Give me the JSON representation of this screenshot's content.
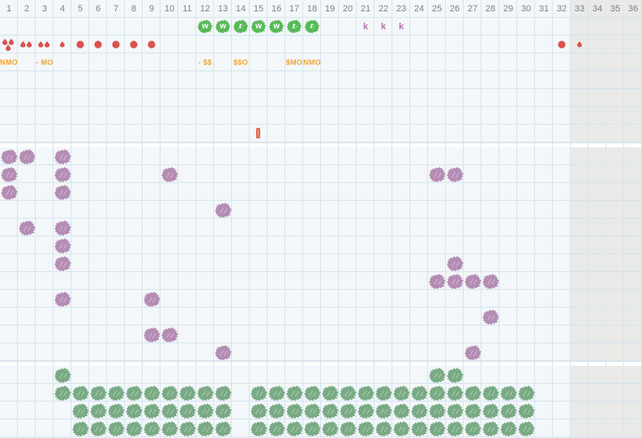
{
  "columns": [
    "1",
    "2",
    "3",
    "4",
    "5",
    "6",
    "7",
    "8",
    "9",
    "10",
    "11",
    "12",
    "13",
    "14",
    "15",
    "16",
    "17",
    "18",
    "19",
    "20",
    "21",
    "22",
    "23",
    "24",
    "25",
    "26",
    "27",
    "28",
    "29",
    "30",
    "31",
    "32",
    "33",
    "34",
    "35",
    "36"
  ],
  "inactive_columns": {
    "start": 33,
    "end": 36
  },
  "colors": {
    "background": "#f3f7f9",
    "inactive_bg": "#e9eae8",
    "grid_line": "#d5e4ee",
    "header_text": "#78828b",
    "badge_green": "#56b956",
    "badge_letter": "#ffffff",
    "k_mark": "#b273ab",
    "red": "#d9534f",
    "orange": "#f5a427",
    "purple_splat": "#b48cb4",
    "green_splat": "#79aa84",
    "bar_marker_fill": "#f08364",
    "bar_marker_border": "#d2593e"
  },
  "top_rows": {
    "badges": {
      "row": 1,
      "items": [
        {
          "col": 12,
          "letter": "w"
        },
        {
          "col": 13,
          "letter": "w"
        },
        {
          "col": 14,
          "letter": "r"
        },
        {
          "col": 15,
          "letter": "w"
        },
        {
          "col": 16,
          "letter": "w"
        },
        {
          "col": 17,
          "letter": "r"
        },
        {
          "col": 18,
          "letter": "r"
        }
      ]
    },
    "letter_marks": {
      "row": 1,
      "items": [
        {
          "col": 21,
          "letter": "k"
        },
        {
          "col": 22,
          "letter": "k"
        },
        {
          "col": 23,
          "letter": "k"
        }
      ]
    },
    "red_marks": {
      "row": 2,
      "items": [
        {
          "col": 1,
          "type": "drops-3"
        },
        {
          "col": 2,
          "type": "drops-2"
        },
        {
          "col": 3,
          "type": "drops-2"
        },
        {
          "col": 4,
          "type": "drop-small"
        },
        {
          "col": 5,
          "type": "dot"
        },
        {
          "col": 6,
          "type": "dot"
        },
        {
          "col": 7,
          "type": "dot"
        },
        {
          "col": 8,
          "type": "dot"
        },
        {
          "col": 9,
          "type": "dot"
        },
        {
          "col": 32,
          "type": "dot"
        },
        {
          "col": 33,
          "type": "drop-small"
        }
      ]
    },
    "labels": {
      "row": 3,
      "items": [
        {
          "col": 1,
          "text": "NMO"
        },
        {
          "col": 3,
          "text": "- MO"
        },
        {
          "col": 12,
          "text": "- $$"
        },
        {
          "col": 14,
          "text": "$$O"
        },
        {
          "col": 17,
          "text": "$MO"
        },
        {
          "col": 18,
          "text": "NMO"
        }
      ]
    },
    "bar_marker": {
      "row": 7,
      "col": 15
    }
  },
  "middle_section": {
    "rows": [
      [
        1,
        2,
        4
      ],
      [
        1,
        4,
        10,
        25,
        26
      ],
      [
        1,
        4
      ],
      [
        13
      ],
      [
        2,
        4
      ],
      [
        4
      ],
      [
        4,
        26
      ],
      [
        25,
        26,
        27,
        28
      ],
      [
        4,
        9
      ],
      [
        28
      ],
      [
        9,
        10
      ],
      [
        13,
        27
      ]
    ]
  },
  "bottom_section": {
    "rows": [
      [
        4,
        25,
        26
      ],
      [
        4,
        5,
        6,
        7,
        8,
        9,
        10,
        11,
        12,
        13,
        15,
        16,
        17,
        18,
        19,
        20,
        21,
        22,
        23,
        24,
        25,
        26,
        27,
        28,
        29,
        30
      ],
      [
        5,
        6,
        7,
        8,
        9,
        10,
        11,
        12,
        13,
        15,
        16,
        17,
        18,
        19,
        20,
        21,
        22,
        23,
        24,
        25,
        26,
        27,
        28,
        29,
        30
      ],
      [
        5,
        6,
        7,
        8,
        9,
        10,
        11,
        12,
        13,
        15,
        16,
        17,
        18,
        19,
        20,
        21,
        22,
        23,
        24,
        25,
        26,
        27,
        28,
        29,
        30
      ]
    ]
  }
}
